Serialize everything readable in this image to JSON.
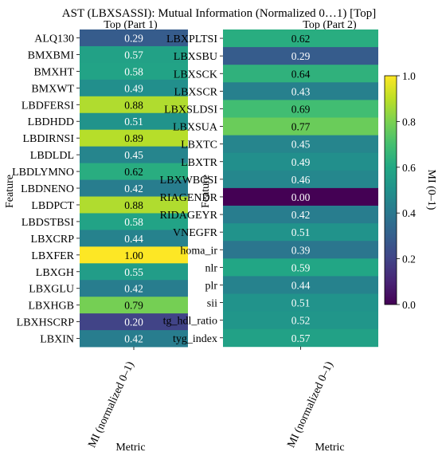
{
  "chart_data": {
    "type": "heatmap",
    "title": "AST (LBXSASSI): Mutual Information (Normalized 0…1) [Top]",
    "colormap": "viridis",
    "value_range": [
      0,
      1
    ],
    "colorbar": {
      "label": "MI (0–1)",
      "ticks": [
        "0.0",
        "0.2",
        "0.4",
        "0.6",
        "0.8",
        "1.0"
      ],
      "tick_values": [
        0,
        0.2,
        0.4,
        0.6,
        0.8,
        1.0
      ],
      "placement": "right"
    },
    "panels": [
      {
        "title": "Top (Part 1)",
        "xlabel": "Metric",
        "ylabel": "Feature",
        "columns": [
          "MI (normalized 0–1)"
        ],
        "rows": [
          "ALQ130",
          "BMXBMI",
          "BMXHT",
          "BMXWT",
          "LBDFERSI",
          "LBDHDD",
          "LBDIRNSI",
          "LBDLDL",
          "LBDLYMNO",
          "LBDNENO",
          "LBDPCT",
          "LBDSTBSI",
          "LBXCRP",
          "LBXFER",
          "LBXGH",
          "LBXGLU",
          "LBXHGB",
          "LBXHSCRP",
          "LBXIN"
        ],
        "values": [
          0.29,
          0.57,
          0.58,
          0.49,
          0.88,
          0.51,
          0.89,
          0.45,
          0.62,
          0.42,
          0.88,
          0.58,
          0.44,
          1.0,
          0.55,
          0.42,
          0.79,
          0.2,
          0.42
        ],
        "labels": [
          "0.29",
          "0.57",
          "0.58",
          "0.49",
          "0.88",
          "0.51",
          "0.89",
          "0.45",
          "0.62",
          "0.42",
          "0.88",
          "0.58",
          "0.44",
          "1.00",
          "0.55",
          "0.42",
          "0.79",
          "0.20",
          "0.42"
        ]
      },
      {
        "title": "Top (Part 2)",
        "xlabel": "Metric",
        "ylabel": "Feature",
        "columns": [
          "MI (normalized 0–1)"
        ],
        "rows": [
          "LBXPLTSI",
          "LBXSBU",
          "LBXSCK",
          "LBXSCR",
          "LBXSLDSI",
          "LBXSUA",
          "LBXTC",
          "LBXTR",
          "LBXWBCSI",
          "RIAGENDR",
          "RIDAGEYR",
          "VNEGFR",
          "homa_ir",
          "nlr",
          "plr",
          "sii",
          "tg_hdl_ratio",
          "tyg_index"
        ],
        "values": [
          0.62,
          0.29,
          0.64,
          0.43,
          0.69,
          0.77,
          0.45,
          0.49,
          0.46,
          0.0,
          0.42,
          0.51,
          0.39,
          0.59,
          0.44,
          0.51,
          0.52,
          0.57
        ],
        "labels": [
          "0.62",
          "0.29",
          "0.64",
          "0.43",
          "0.69",
          "0.77",
          "0.45",
          "0.49",
          "0.46",
          "0.00",
          "0.42",
          "0.51",
          "0.39",
          "0.59",
          "0.44",
          "0.51",
          "0.52",
          "0.57"
        ]
      }
    ]
  }
}
